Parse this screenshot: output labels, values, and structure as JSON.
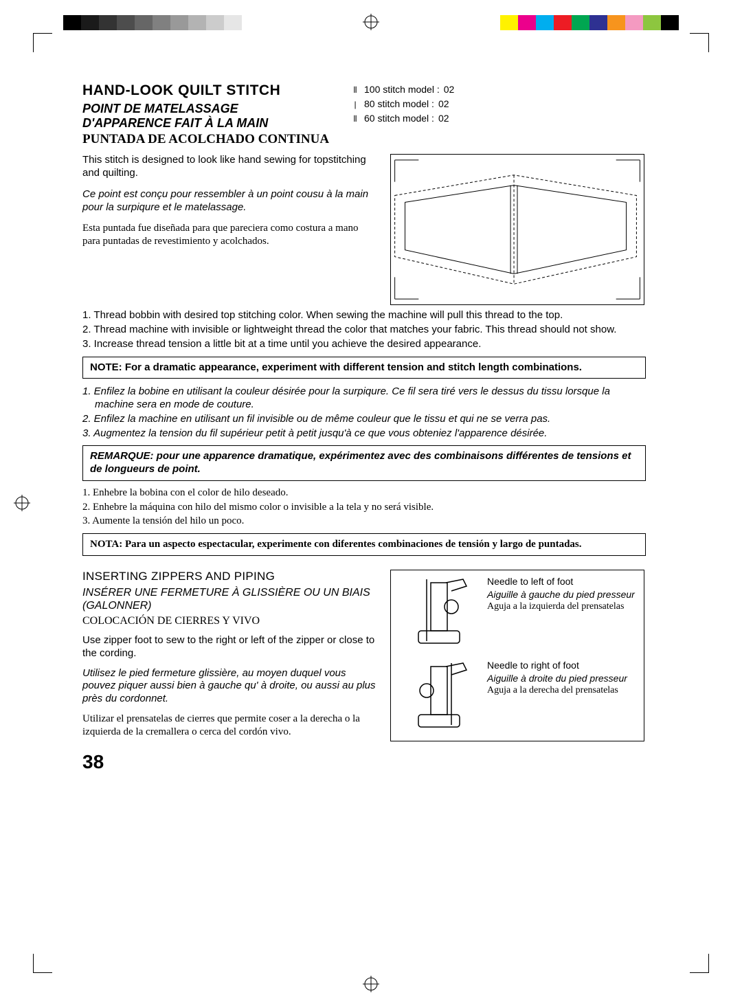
{
  "colorbars": {
    "left": [
      "#000000",
      "#1a1a1a",
      "#333333",
      "#4d4d4d",
      "#666666",
      "#808080",
      "#999999",
      "#b3b3b3",
      "#cccccc",
      "#e6e6e6",
      "#ffffff"
    ],
    "right": [
      "#fff200",
      "#ec008c",
      "#00aeef",
      "#ed1c24",
      "#00a651",
      "#2e3192",
      "#f7941d",
      "#f49ac1",
      "#8dc63f",
      "#000000"
    ]
  },
  "section1": {
    "title_en": "HAND-LOOK QUILT STITCH",
    "title_fr": "POINT DE MATELASSAGE D'APPARENCE FAIT À LA MAIN",
    "title_es": "PUNTADA DE ACOLCHADO CONTINUA",
    "models": [
      {
        "icon": "⦀",
        "label": "100 stitch model :",
        "val": "02"
      },
      {
        "icon": "|",
        "label": "80 stitch model :",
        "val": "02"
      },
      {
        "icon": "⦀",
        "label": "60 stitch model :",
        "val": "02"
      }
    ],
    "intro_en": "This stitch is designed to look like hand sewing for topstitching  and quilting.",
    "intro_fr": "Ce point est conçu pour ressembler à un point cousu à la main pour la surpiqure et le matelassage.",
    "intro_es": "Esta puntada fue diseñada para que pareciera como costura a mano para puntadas de revestimiento y acolchados.",
    "steps_en": [
      "1. Thread bobbin with desired top stitching color.  When sewing the machine will pull this thread to the top.",
      "2. Thread machine with invisible or lightweight thread  the color that matches your fabric. This thread should not show.",
      "3. Increase thread tension a little bit at a time until you achieve the desired appearance."
    ],
    "note_en": "NOTE:   For a dramatic appearance, experiment with different tension and stitch length combinations.",
    "steps_fr": [
      "1. Enfilez la bobine en utilisant la couleur désirée pour la surpiqure. Ce fil sera tiré vers le dessus du tissu lorsque la machine sera en mode de couture.",
      "2. Enfilez la machine en utilisant un fil invisible ou de même couleur que le tissu et qui ne se verra pas.",
      "3. Augmentez la tension du fil supérieur petit à petit jusqu'à ce que vous obteniez l'apparence désirée."
    ],
    "note_fr": "REMARQUE: pour une apparence dramatique, expérimentez avec des combinaisons différentes de tensions et de longueurs de point.",
    "steps_es": [
      "1. Enhebre la bobina con el color de hilo deseado.",
      "2. Enhebre la máquina con hilo del mismo color o invisible a la tela y no será visible.",
      "3. Aumente la tensión del hilo un poco."
    ],
    "note_es": "NOTA:  Para un aspecto espectacular, experimente con diferentes combinaciones de tensión y largo de puntadas."
  },
  "section2": {
    "title_en": "INSERTING ZIPPERS AND PIPING",
    "title_fr": "INSÉRER UNE FERMETURE À GLISSIÈRE OU UN BIAIS (GALONNER)",
    "title_es": "COLOCACIÓN  DE CIERRES Y VIVO",
    "p_en": "Use zipper foot to sew to the right or left of the zipper or close to the cording.",
    "p_fr": "Utilisez le pied fermeture glissière, au moyen duquel vous pouvez piquer aussi bien à gauche qu' à droite, ou aussi au plus près du cordonnet.",
    "p_es": "Utilizar el prensatelas de cierres que permite coser a la derecha o la izquierda de la cremallera o cerca del cordón vivo.",
    "left_foot": {
      "en": "Needle to left of foot",
      "fr": "Aiguille à gauche du pied presseur",
      "es": "Aguja a la izquierda del prensatelas"
    },
    "right_foot": {
      "en": "Needle to right of foot",
      "fr": "Aiguille à droite du pied presseur",
      "es": "Aguja a la derecha del prensatelas"
    }
  },
  "page_number": "38"
}
